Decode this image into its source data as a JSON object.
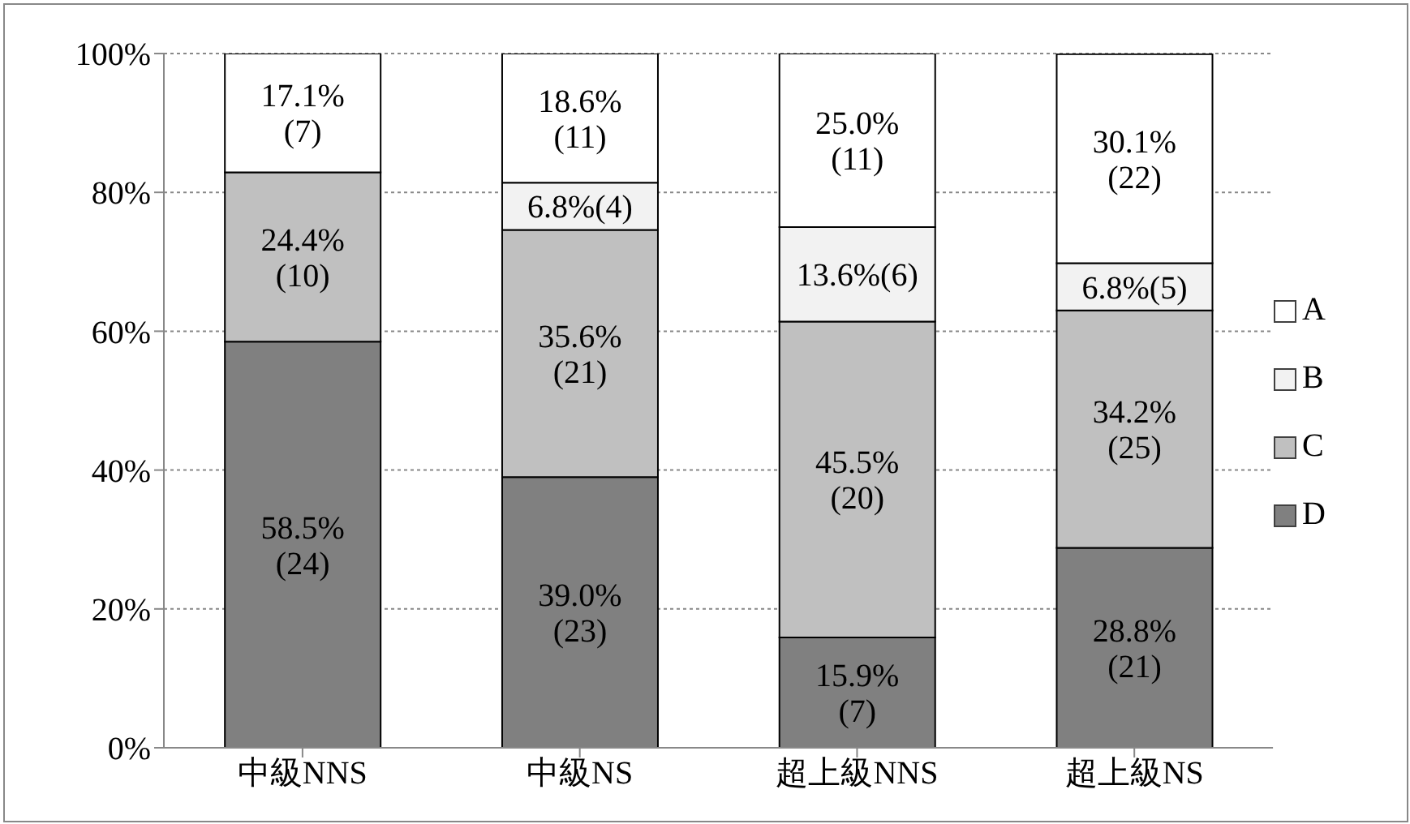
{
  "chart_data": {
    "type": "bar",
    "stacked": true,
    "categories": [
      "中級NNS",
      "中級NS",
      "超上級NNS",
      "超上級NS"
    ],
    "series": [
      {
        "name": "D",
        "color": "#808080",
        "values": [
          58.5,
          39.0,
          15.9,
          28.8
        ],
        "value_labels": [
          "58.5%\n(24)",
          "39.0%\n(23)",
          "15.9%\n(7)",
          "28.8%\n(21)"
        ]
      },
      {
        "name": "C",
        "color": "#c0c0c0",
        "values": [
          24.4,
          35.6,
          45.5,
          34.2
        ],
        "value_labels": [
          "24.4%\n(10)",
          "35.6%\n(21)",
          "45.5%\n(20)",
          "34.2%\n(25)"
        ]
      },
      {
        "name": "B",
        "color": "#f2f2f2",
        "values": [
          0,
          6.8,
          13.6,
          6.8
        ],
        "value_labels": [
          null,
          "6.8%(4)",
          "13.6%(6)",
          "6.8%(5)"
        ]
      },
      {
        "name": "A",
        "color": "#ffffff",
        "values": [
          17.1,
          18.6,
          25.0,
          30.1
        ],
        "value_labels": [
          "17.1%\n(7)",
          "18.6%\n(11)",
          "25.0%\n(11)",
          "30.1%\n(22)"
        ]
      }
    ],
    "ylim": [
      0,
      100
    ],
    "yticks": [
      {
        "value": 0,
        "label": "0%"
      },
      {
        "value": 20,
        "label": "20%"
      },
      {
        "value": 40,
        "label": "40%"
      },
      {
        "value": 60,
        "label": "60%"
      },
      {
        "value": 80,
        "label": "80%"
      },
      {
        "value": 100,
        "label": "100%"
      }
    ],
    "grid": "y",
    "legend": "right"
  }
}
